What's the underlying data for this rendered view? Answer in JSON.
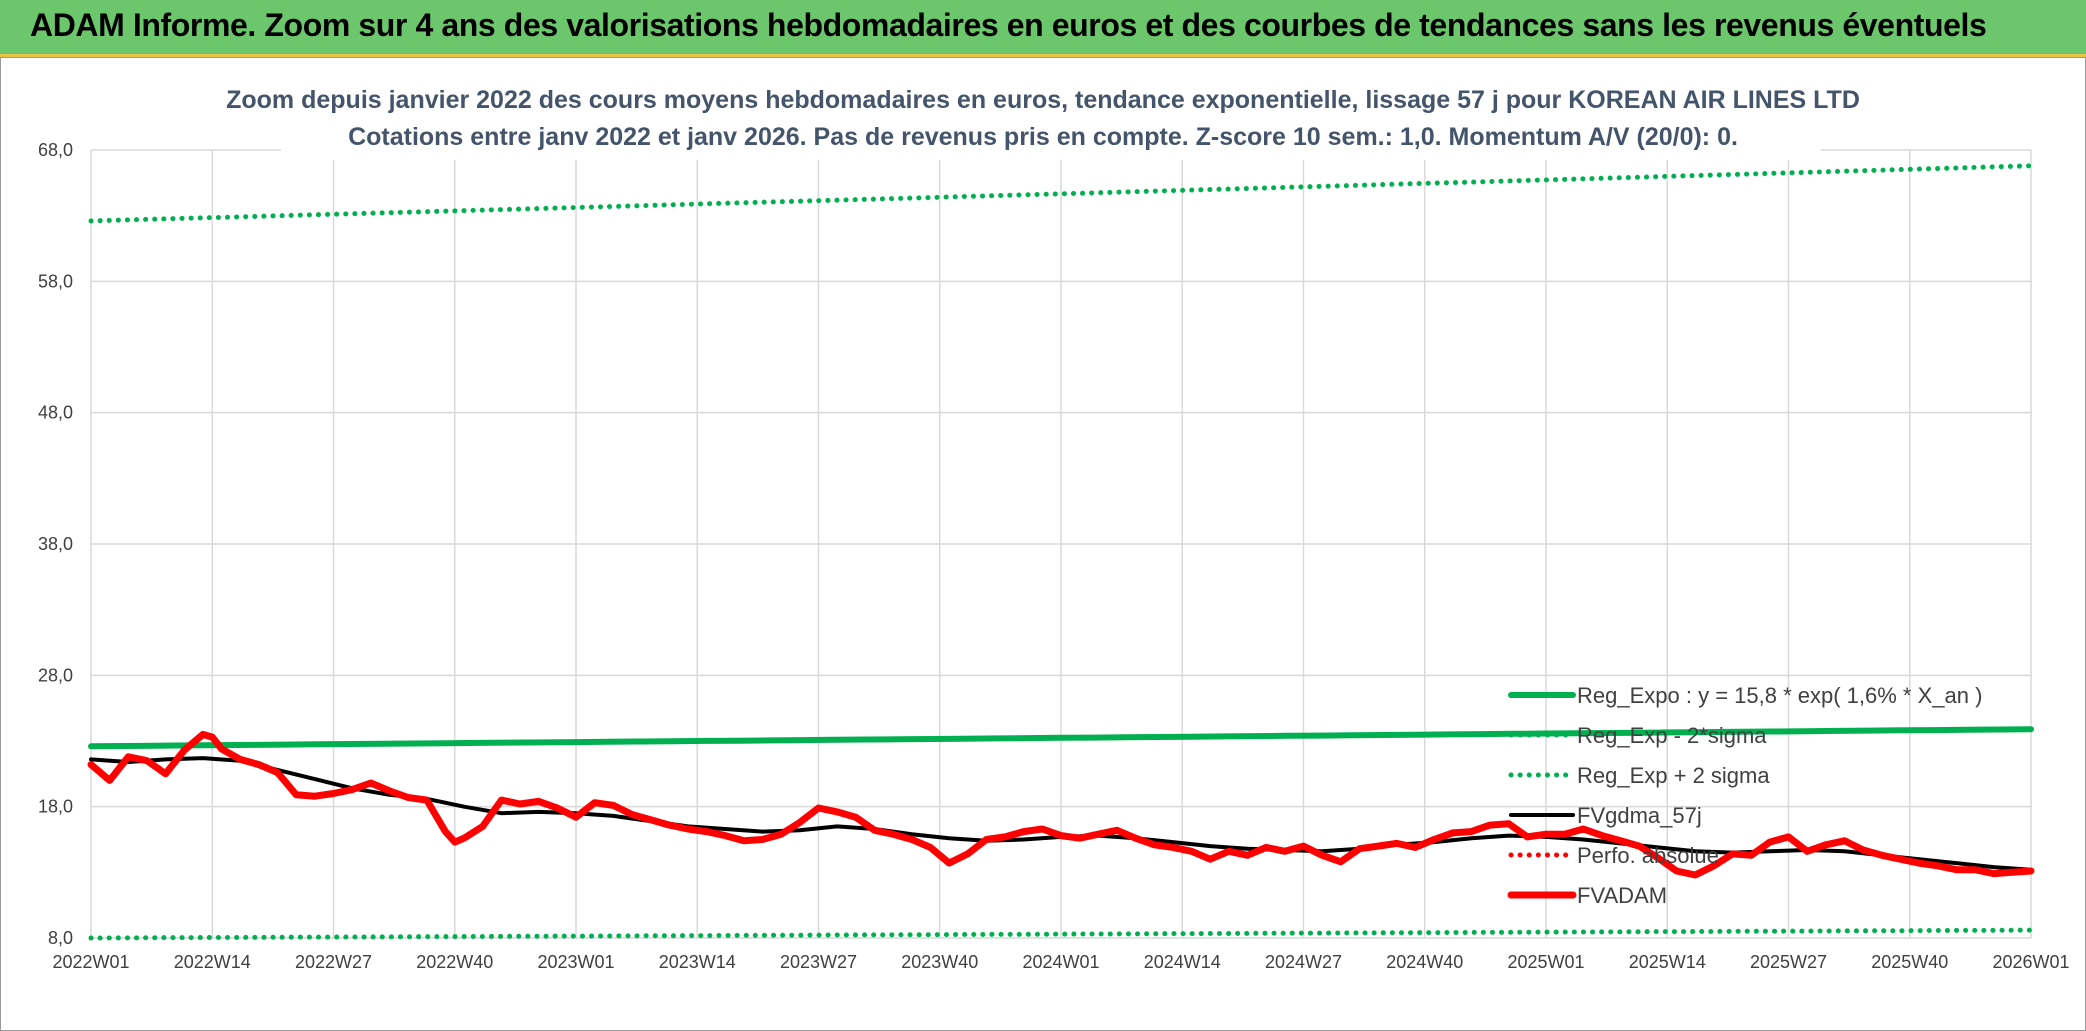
{
  "banner": {
    "title": "ADAM Informe. Zoom sur 4 ans des valorisations hebdomadaires en euros et des courbes de tendances sans les revenus éventuels"
  },
  "colors": {
    "banner_bg": "#6cc66c",
    "reg_green": "#00b050",
    "fvgdma": "#000000",
    "fvadam": "#ff0000",
    "perfo": "#ff0000",
    "title_text": "#44546a"
  },
  "chart_data": {
    "type": "line",
    "title": "Zoom depuis janvier 2022 des cours moyens hebdomadaires en euros, tendance exponentielle, lissage 57 j pour KOREAN AIR LINES LTD",
    "subtitle": "Cotations entre janv 2022 et janv 2026. Pas de revenus pris en compte. Z-score 10 sem.: 1,0. Momentum A/V (20/0): 0.",
    "xlabel": "",
    "ylabel": "",
    "ylim": [
      8,
      68
    ],
    "yticks": [
      "8,0",
      "18,0",
      "28,0",
      "38,0",
      "48,0",
      "58,0",
      "68,0"
    ],
    "xticks": [
      "2022W01",
      "2022W14",
      "2022W27",
      "2022W40",
      "2023W01",
      "2023W14",
      "2023W27",
      "2023W40",
      "2024W01",
      "2024W14",
      "2024W27",
      "2024W40",
      "2025W01",
      "2025W14",
      "2025W27",
      "2025W40",
      "2026W01"
    ],
    "grid": true,
    "legend_position": "bottom-right",
    "legend": [
      "Reg_Expo : y = 15,8 * exp( 1,6% *  X_an )",
      "Reg_Exp - 2*sigma",
      "Reg_Exp + 2 sigma",
      "FVgdma_57j",
      "Perfo. absolue",
      "FVADAM"
    ],
    "series": [
      {
        "name": "Reg_Expo : y = 15,8 * exp( 1,6% *  X_an )",
        "style": "solid-thick",
        "color": "#00b050",
        "x": [
          "2022W01",
          "2026W01"
        ],
        "y": [
          22.6,
          23.9
        ]
      },
      {
        "name": "Reg_Exp - 2*sigma",
        "style": "dotted",
        "color": "#00b050",
        "x": [
          "2022W01",
          "2026W01"
        ],
        "y": [
          8.0,
          8.6
        ]
      },
      {
        "name": "Reg_Exp + 2 sigma",
        "style": "dotted",
        "color": "#00b050",
        "x": [
          "2022W01",
          "2026W01"
        ],
        "y": [
          62.6,
          66.8
        ]
      },
      {
        "name": "FVgdma_57j",
        "style": "solid",
        "color": "#000000",
        "x": [
          "2022W01",
          "2022W05",
          "2022W09",
          "2022W13",
          "2022W17",
          "2022W21",
          "2022W25",
          "2022W29",
          "2022W33",
          "2022W37",
          "2022W41",
          "2022W45",
          "2022W49",
          "2023W01",
          "2023W05",
          "2023W09",
          "2023W13",
          "2023W17",
          "2023W21",
          "2023W25",
          "2023W29",
          "2023W33",
          "2023W37",
          "2023W41",
          "2023W45",
          "2023W49",
          "2024W01",
          "2024W05",
          "2024W09",
          "2024W13",
          "2024W17",
          "2024W21",
          "2024W25",
          "2024W29",
          "2024W33",
          "2024W37",
          "2024W41",
          "2024W45",
          "2024W49",
          "2025W01",
          "2025W05",
          "2025W09",
          "2025W13",
          "2025W17",
          "2025W21",
          "2025W25",
          "2025W29",
          "2025W33",
          "2025W37",
          "2025W41",
          "2025W45",
          "2025W49",
          "2026W01"
        ],
        "y": [
          21.6,
          21.4,
          21.6,
          21.7,
          21.5,
          20.8,
          20.1,
          19.4,
          18.9,
          18.6,
          18.0,
          17.5,
          17.6,
          17.5,
          17.3,
          16.9,
          16.5,
          16.3,
          16.1,
          16.2,
          16.5,
          16.3,
          15.9,
          15.6,
          15.4,
          15.5,
          15.7,
          15.8,
          15.6,
          15.3,
          15.0,
          14.8,
          14.7,
          14.6,
          14.8,
          15.1,
          15.3,
          15.6,
          15.8,
          15.7,
          15.5,
          15.2,
          14.9,
          14.6,
          14.5,
          14.6,
          14.7,
          14.6,
          14.3,
          14.0,
          13.7,
          13.4,
          13.2
        ]
      },
      {
        "name": "Perfo. absolue",
        "style": "dotted",
        "color": "#ff0000",
        "x": [],
        "y": []
      },
      {
        "name": "FVADAM",
        "style": "solid-thick",
        "color": "#ff0000",
        "x": [
          "2022W01",
          "2022W03",
          "2022W05",
          "2022W07",
          "2022W09",
          "2022W11",
          "2022W13",
          "2022W14",
          "2022W15",
          "2022W17",
          "2022W19",
          "2022W21",
          "2022W23",
          "2022W25",
          "2022W27",
          "2022W29",
          "2022W31",
          "2022W33",
          "2022W35",
          "2022W37",
          "2022W39",
          "2022W40",
          "2022W41",
          "2022W43",
          "2022W45",
          "2022W47",
          "2022W49",
          "2022W51",
          "2023W01",
          "2023W03",
          "2023W05",
          "2023W07",
          "2023W09",
          "2023W11",
          "2023W13",
          "2023W15",
          "2023W17",
          "2023W19",
          "2023W21",
          "2023W23",
          "2023W25",
          "2023W27",
          "2023W29",
          "2023W31",
          "2023W33",
          "2023W35",
          "2023W37",
          "2023W39",
          "2023W41",
          "2023W43",
          "2023W45",
          "2023W47",
          "2023W49",
          "2023W51",
          "2024W01",
          "2024W03",
          "2024W05",
          "2024W07",
          "2024W09",
          "2024W11",
          "2024W13",
          "2024W15",
          "2024W17",
          "2024W19",
          "2024W21",
          "2024W23",
          "2024W25",
          "2024W27",
          "2024W29",
          "2024W31",
          "2024W33",
          "2024W35",
          "2024W37",
          "2024W39",
          "2024W41",
          "2024W43",
          "2024W45",
          "2024W47",
          "2024W49",
          "2024W51",
          "2025W01",
          "2025W03",
          "2025W05",
          "2025W07",
          "2025W09",
          "2025W11",
          "2025W13",
          "2025W15",
          "2025W17",
          "2025W19",
          "2025W21",
          "2025W23",
          "2025W25",
          "2025W27",
          "2025W29",
          "2025W31",
          "2025W33",
          "2025W35",
          "2025W37",
          "2025W39",
          "2025W41",
          "2025W43",
          "2025W45",
          "2025W47",
          "2025W49",
          "2025W51",
          "2026W01"
        ],
        "y": [
          21.2,
          20.0,
          21.8,
          21.5,
          20.5,
          22.3,
          23.5,
          23.3,
          22.4,
          21.6,
          21.2,
          20.6,
          18.9,
          18.8,
          19.0,
          19.3,
          19.8,
          19.2,
          18.7,
          18.5,
          16.1,
          15.3,
          15.6,
          16.5,
          18.5,
          18.2,
          18.4,
          17.9,
          17.2,
          18.3,
          18.1,
          17.4,
          17.0,
          16.6,
          16.3,
          16.1,
          15.8,
          15.4,
          15.5,
          15.9,
          16.8,
          17.9,
          17.6,
          17.2,
          16.2,
          15.9,
          15.5,
          14.9,
          13.7,
          14.4,
          15.5,
          15.7,
          16.1,
          16.3,
          15.8,
          15.6,
          15.9,
          16.2,
          15.6,
          15.1,
          14.9,
          14.6,
          14.0,
          14.6,
          14.3,
          14.9,
          14.6,
          15.0,
          14.3,
          13.8,
          14.8,
          15.0,
          15.2,
          14.9,
          15.5,
          16.0,
          16.1,
          16.6,
          16.7,
          15.7,
          15.9,
          15.9,
          16.3,
          15.8,
          15.4,
          15.0,
          14.1,
          13.1,
          12.8,
          13.5,
          14.4,
          14.3,
          15.3,
          15.7,
          14.6,
          15.1,
          15.4,
          14.7,
          14.3,
          14.0,
          13.7,
          13.5,
          13.2,
          13.2,
          12.9,
          13.0,
          13.1
        ]
      }
    ]
  }
}
